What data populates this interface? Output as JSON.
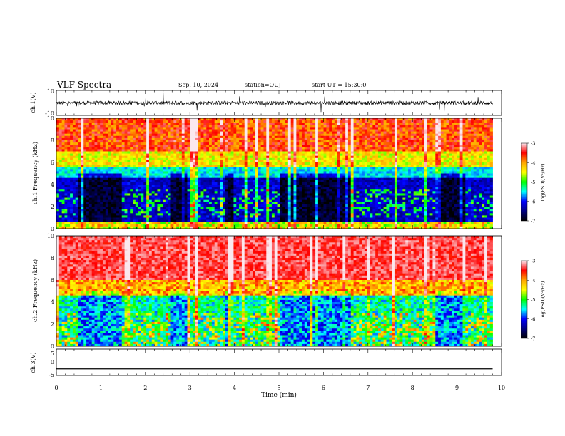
{
  "header": {
    "title": "VLF Spectra",
    "date": "Sep. 10, 2024",
    "station": "station=OUJ",
    "start": "start UT = 15:30:0"
  },
  "colorbar": {
    "label": "log(PSD)(V²/Hz)",
    "ticks": [
      "-3",
      "-4",
      "-5",
      "-6",
      "-7"
    ],
    "colors": [
      "#fbe8ee",
      "#ff0000",
      "#ffa500",
      "#ffff00",
      "#00ff00",
      "#00ffff",
      "#0000ff",
      "#000080",
      "#000000"
    ]
  },
  "chart_data": [
    {
      "type": "line",
      "panel": "ch1-waveform",
      "ylabel": "ch.1(V)",
      "ylim": [
        -10,
        10
      ],
      "y_ticks": [
        "10",
        "-10"
      ],
      "xlim": [
        0,
        10
      ],
      "baseline": 0,
      "approx_amplitude": 1.5
    },
    {
      "type": "heatmap",
      "panel": "ch1-spectrogram",
      "ylabel": "ch.1 Frequency (kHz)",
      "ylim": [
        0,
        10
      ],
      "y_ticks": [
        "0",
        "2",
        "4",
        "6",
        "8",
        "10"
      ],
      "xlim": [
        0,
        9.8
      ],
      "zlim": [
        -7,
        -3
      ],
      "quiet_periods_min": [
        [
          0.5,
          1.5
        ],
        [
          2.6,
          2.95
        ],
        [
          3.8,
          4.0
        ],
        [
          5.0,
          6.6
        ],
        [
          8.5,
          9.2
        ]
      ]
    },
    {
      "type": "heatmap",
      "panel": "ch2-spectrogram",
      "ylabel": "ch.2 Frequency (kHz)",
      "ylim": [
        0,
        10
      ],
      "y_ticks": [
        "0",
        "2",
        "4",
        "6",
        "8",
        "10"
      ],
      "xlim": [
        0,
        9.8
      ],
      "zlim": [
        -7,
        -3
      ]
    },
    {
      "type": "line",
      "panel": "ch3-waveform",
      "ylabel": "ch.3(V)",
      "ylim": [
        -5,
        5
      ],
      "y_ticks": [
        "5",
        "0",
        "-5"
      ],
      "xlim": [
        0,
        10
      ],
      "values_constant": -2.5
    }
  ],
  "xaxis": {
    "label": "Time (min)",
    "ticks": [
      "0",
      "1",
      "2",
      "3",
      "4",
      "5",
      "6",
      "7",
      "8",
      "9",
      "10"
    ]
  }
}
